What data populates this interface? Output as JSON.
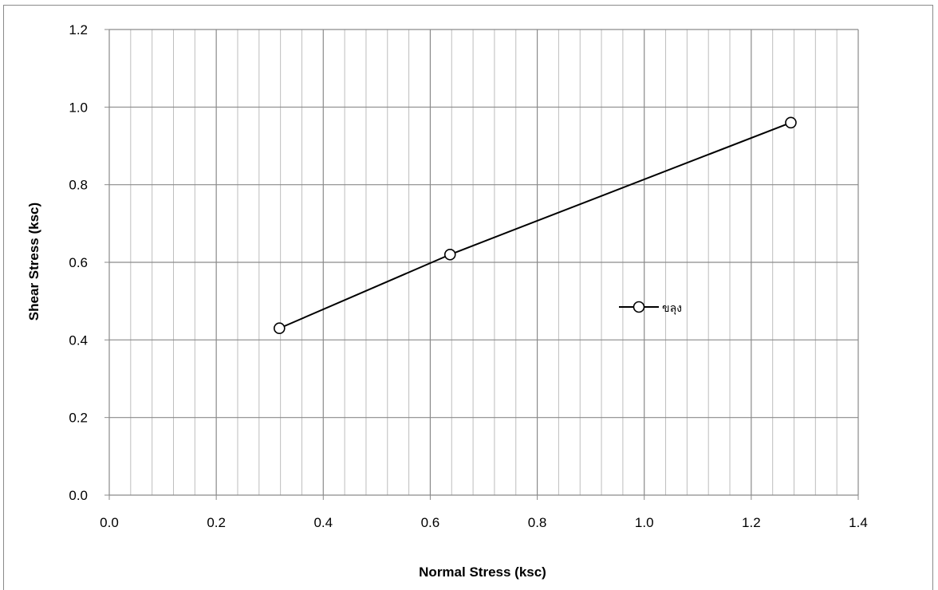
{
  "chart_data": {
    "type": "scatter",
    "title": "",
    "xlabel": "Normal Stress (ksc)",
    "ylabel": "Shear Stress (ksc)",
    "xlim": [
      0.0,
      1.4
    ],
    "ylim": [
      0.0,
      1.2
    ],
    "x_ticks": [
      "0.0",
      "0.2",
      "0.4",
      "0.6",
      "0.8",
      "1.0",
      "1.2",
      "1.4"
    ],
    "y_ticks": [
      "0.0",
      "0.2",
      "0.4",
      "0.6",
      "0.8",
      "1.0",
      "1.2"
    ],
    "x_major_step": 0.2,
    "x_minor_step": 0.04,
    "y_major_step": 0.2,
    "grid": true,
    "legend_position": "right-middle",
    "series": [
      {
        "name": "ขลุง",
        "marker": "open-circle",
        "line": true,
        "color": "#000000",
        "x": [
          0.318,
          0.637,
          1.274
        ],
        "y": [
          0.43,
          0.62,
          0.96
        ]
      }
    ]
  }
}
